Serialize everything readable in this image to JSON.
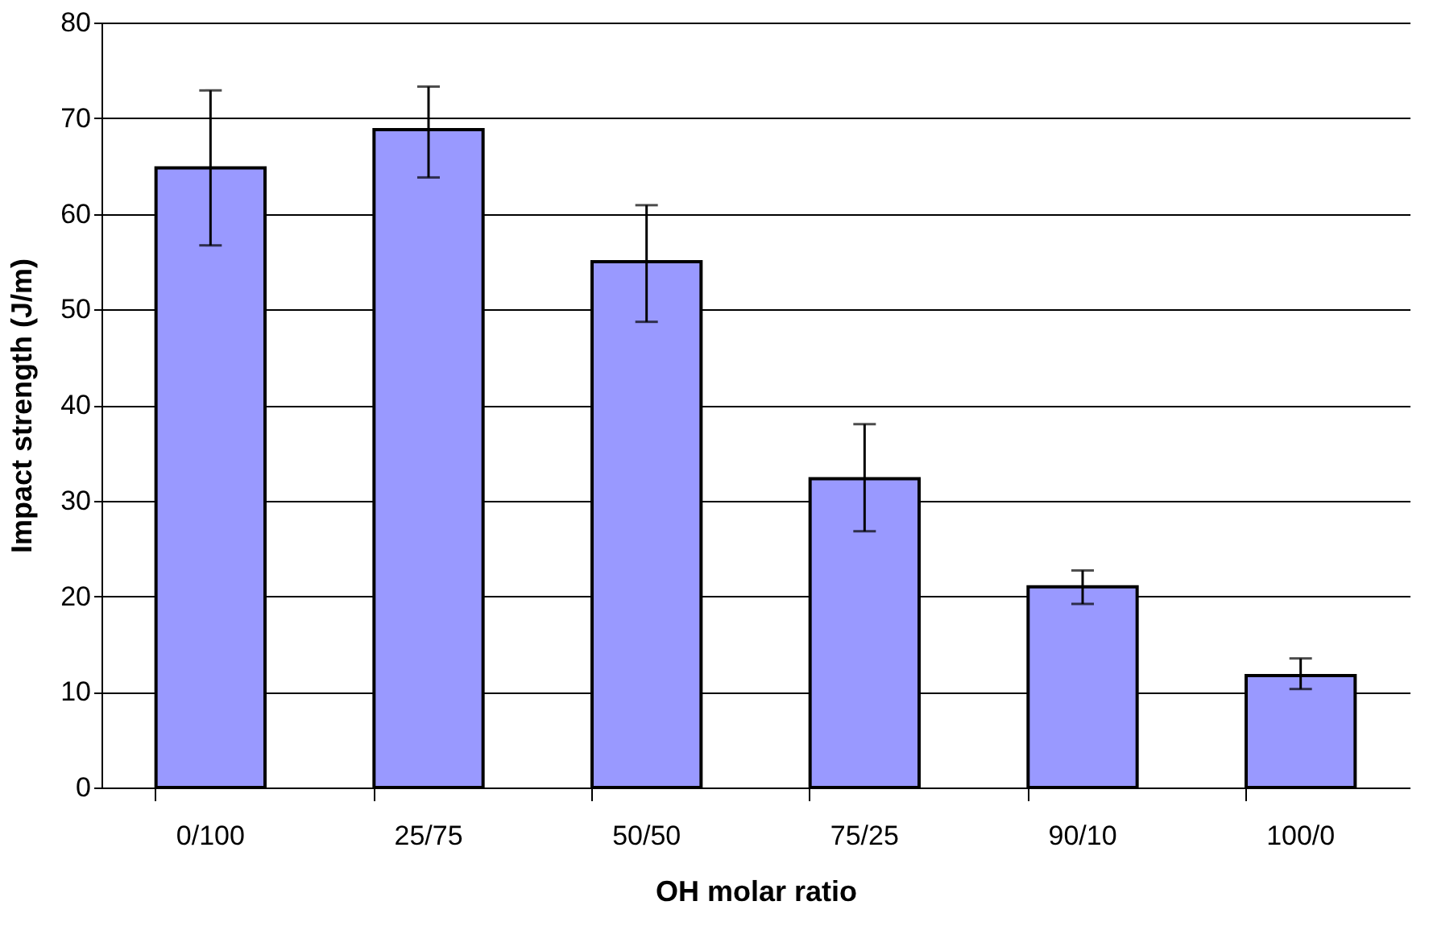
{
  "chart_data": {
    "type": "bar",
    "xlabel": "OH molar ratio",
    "ylabel": "Impact strength (J/m)",
    "categories": [
      "0/100",
      "25/75",
      "50/50",
      "75/25",
      "90/10",
      "100/0"
    ],
    "values": [
      64.8,
      68.8,
      55.0,
      32.3,
      21.0,
      11.7
    ],
    "errors": [
      [
        56.7,
        72.9
      ],
      [
        63.8,
        73.3
      ],
      [
        48.7,
        60.9
      ],
      [
        26.8,
        38.0
      ],
      [
        19.2,
        22.7
      ],
      [
        10.3,
        13.5
      ]
    ],
    "color": "#9999ff",
    "ylim": [
      0,
      80
    ],
    "yticks": [
      0,
      10,
      20,
      30,
      40,
      50,
      60,
      70,
      80
    ],
    "grid": "y"
  }
}
